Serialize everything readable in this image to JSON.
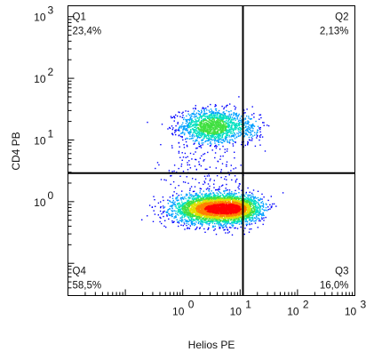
{
  "chart_data": {
    "type": "scatter",
    "subtype": "flow-cytometry-density-dot-plot",
    "xlabel": "Helios PE",
    "ylabel": "CD4 PB",
    "x_scale": "log",
    "y_scale": "log",
    "xlim": [
      0.01,
      1000
    ],
    "ylim": [
      0.03,
      1500
    ],
    "x_ticks": [
      {
        "value": 1,
        "base": "10",
        "exp": "0"
      },
      {
        "value": 10,
        "base": "10",
        "exp": "1"
      },
      {
        "value": 100,
        "base": "10",
        "exp": "2"
      },
      {
        "value": 1000,
        "base": "10",
        "exp": "3"
      }
    ],
    "y_ticks": [
      {
        "value": 1,
        "base": "10",
        "exp": "0"
      },
      {
        "value": 10,
        "base": "10",
        "exp": "1"
      },
      {
        "value": 100,
        "base": "10",
        "exp": "2"
      },
      {
        "value": 1000,
        "base": "10",
        "exp": "3"
      }
    ],
    "gate": {
      "x": 11.2,
      "y": 2.9
    },
    "quadrants": [
      {
        "name": "Q1",
        "percent": "23,4%",
        "corner": "top-left"
      },
      {
        "name": "Q2",
        "percent": "2,13%",
        "corner": "top-right"
      },
      {
        "name": "Q3",
        "percent": "16,0%",
        "corner": "bottom-right"
      },
      {
        "name": "Q4",
        "percent": "58,5%",
        "corner": "bottom-left"
      }
    ],
    "populations": [
      {
        "cx": 3.2,
        "cy": 17,
        "sx": 0.28,
        "sy": 0.14,
        "weight": 0.23
      },
      {
        "cx": 13,
        "cy": 16,
        "sx": 0.15,
        "sy": 0.13,
        "weight": 0.025
      },
      {
        "cx": 3.2,
        "cy": 0.78,
        "sx": 0.34,
        "sy": 0.12,
        "weight": 0.52
      },
      {
        "cx": 8.5,
        "cy": 0.78,
        "sx": 0.22,
        "sy": 0.11,
        "weight": 0.2
      },
      {
        "cx": 2.5,
        "cy": 3.5,
        "sx": 0.4,
        "sy": 0.25,
        "weight": 0.025
      }
    ],
    "density_colors": [
      "#0000ff",
      "#00a0ff",
      "#00e0c0",
      "#40e040",
      "#e0e000",
      "#ff8000",
      "#ff0000"
    ],
    "grid": false
  }
}
